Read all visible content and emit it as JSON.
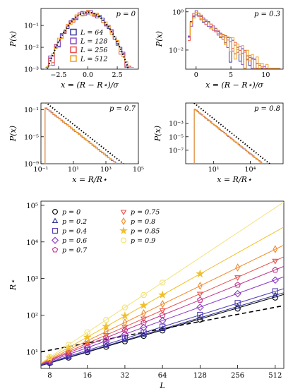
{
  "chart_data": [
    {
      "type": "line",
      "panel": "p0",
      "annotation": "p = 0",
      "xlabel": "x = (R − R⋆)/σ",
      "ylabel": "P(x)",
      "xscale": "linear",
      "yscale": "log",
      "xlim": [
        -4,
        4.3
      ],
      "ylim": [
        0.001,
        0.6
      ],
      "xticks": [
        -2.5,
        0.0,
        2.5
      ],
      "xtick_labels": [
        "−2.5",
        "0.0",
        "2.5"
      ],
      "yticks": [
        0.001,
        0.01,
        0.1
      ],
      "ytick_labels": [
        "10⁻³",
        "10⁻²",
        "10⁻¹"
      ],
      "legend": [
        "L = 64",
        "L = 128",
        "L = 256",
        "L = 512"
      ],
      "legend_position": "center",
      "dotted_curve": "gaussian"
    },
    {
      "type": "line",
      "panel": "p03",
      "annotation": "p = 0.3",
      "xlabel": "x = (R − R⋆)/σ",
      "ylabel": "P(x)",
      "xscale": "linear",
      "yscale": "log",
      "xlim": [
        -1.5,
        12.5
      ],
      "ylim": [
        0.001,
        1.5
      ],
      "xticks": [
        0,
        5,
        10
      ],
      "xtick_labels": [
        "0",
        "5",
        "10"
      ],
      "yticks": [
        1,
        0.01
      ],
      "ytick_labels": [
        "10⁰",
        "10⁻²"
      ]
    },
    {
      "type": "line",
      "panel": "p07",
      "annotation": "p = 0.7",
      "xlabel": "x = R/R⋆",
      "ylabel": "P(x)",
      "xscale": "log",
      "yscale": "log",
      "xlim": [
        0.1,
        100000
      ],
      "ylim": [
        1e-09,
        1
      ],
      "xticks": [
        0.1,
        10,
        1000,
        100000
      ],
      "xtick_labels": [
        "10⁻¹",
        "10¹",
        "10³",
        "10⁵"
      ],
      "yticks": [
        1e-09,
        1e-05,
        0.1
      ],
      "ytick_labels": [
        "10⁻⁹",
        "10⁻⁵",
        "10⁻¹"
      ],
      "dotted_line": "power-law"
    },
    {
      "type": "line",
      "panel": "p08",
      "annotation": "p = 0.8",
      "xlabel": "x = R/R⋆",
      "ylabel": "P(x)",
      "xscale": "log",
      "yscale": "log",
      "xlim": [
        0.05,
        5000000
      ],
      "ylim": [
        1e-09,
        1
      ],
      "xticks": [
        10,
        10000
      ],
      "xtick_labels": [
        "10¹",
        "10⁴"
      ],
      "yticks": [
        1e-07,
        1e-05,
        0.001
      ],
      "ytick_labels": [
        "10⁻⁷",
        "10⁻⁵",
        "10⁻³"
      ],
      "dotted_line": "power-law"
    },
    {
      "type": "scatter",
      "panel": "main",
      "xlabel": "L",
      "ylabel": "R⋆",
      "xscale": "log2",
      "yscale": "log",
      "xlim": [
        6.8,
        600
      ],
      "ylim": [
        3.5,
        130000
      ],
      "x": [
        8,
        11.31,
        16,
        22.63,
        32,
        45.25,
        64,
        128,
        256,
        512
      ],
      "xticks": [
        8,
        16,
        32,
        64,
        128,
        256,
        512
      ],
      "xtick_labels": [
        "8",
        "16",
        "32",
        "64",
        "128",
        "256",
        "512"
      ],
      "yticks": [
        10,
        100,
        1000,
        10000,
        100000
      ],
      "ytick_labels": [
        "10¹",
        "10²",
        "10³",
        "10⁴",
        "10⁵"
      ],
      "legend_position": "top-left",
      "series": [
        {
          "name": "p = 0",
          "marker": "circle",
          "color": "#000000",
          "y": [
            4.9,
            6.9,
            9.7,
            13.6,
            19.2,
            27.0,
            38,
            75,
            150,
            300
          ],
          "fit_y0": 4.9,
          "fit_slope": 1.0
        },
        {
          "name": "p = 0.2",
          "marker": "triangle",
          "color": "#2b2f8c",
          "y": [
            5.0,
            7.1,
            10.2,
            14.5,
            20.6,
            29.2,
            41.5,
            84,
            170,
            345
          ],
          "fit_y0": 5.0,
          "fit_slope": 1.02
        },
        {
          "name": "p = 0.4",
          "marker": "square",
          "color": "#4f3ab5",
          "y": [
            5.2,
            7.5,
            11,
            16,
            23,
            33.5,
            48.6,
            102,
            214,
            450
          ],
          "fit_y0": 5.2,
          "fit_slope": 1.07
        },
        {
          "name": "p = 0.6",
          "marker": "diamond",
          "color": "#8b34c4",
          "y": [
            5.5,
            8.4,
            12.8,
            19.6,
            30,
            46,
            70,
            164,
            386,
            906
          ],
          "fit_y0": 5.5,
          "fit_slope": 1.23
        },
        {
          "name": "p = 0.7",
          "marker": "pentagon",
          "color": "#c2338c",
          "y": [
            5.8,
            9.3,
            15,
            24,
            38.5,
            62,
            100,
            258,
            666,
            1715
          ],
          "fit_y0": 5.8,
          "fit_slope": 1.37
        },
        {
          "name": "p = 0.75",
          "marker": "triangle-down",
          "color": "#e8514d",
          "y": [
            6.0,
            10.1,
            17,
            28.6,
            48,
            81,
            136,
            385,
            1088,
            3076
          ],
          "fit_y0": 6.0,
          "fit_slope": 1.5
        },
        {
          "name": "p = 0.8",
          "marker": "thin-diamond",
          "color": "#f08a2c",
          "y": [
            6.3,
            11.2,
            20,
            35.6,
            63,
            113,
            200,
            632,
            2000,
            6324
          ],
          "fit_y0": 6.3,
          "fit_slope": 1.66
        },
        {
          "name": "p = 0.85",
          "marker": "star",
          "color": "#f0c02c",
          "y": [
            6.7,
            13,
            25,
            49,
            95,
            184,
            357,
            1343
          ],
          "fit_y0": 6.7,
          "fit_slope": 1.91
        },
        {
          "name": "p = 0.9",
          "marker": "hexagon",
          "color": "#f3e27a",
          "y": [
            7.1,
            15.5,
            34,
            74,
            162,
            355,
            775
          ],
          "fit_y0": 7.1,
          "fit_slope": 2.26
        }
      ],
      "dashed_line": {
        "y0": 11,
        "slope": 0.65
      }
    }
  ]
}
